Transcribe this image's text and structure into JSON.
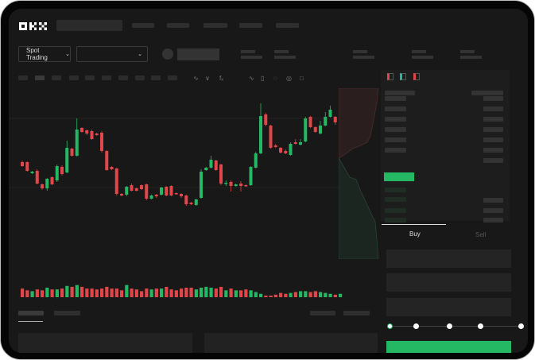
{
  "header": {
    "logo": "OKX"
  },
  "market_bar": {
    "mode_label": "Spot Trading"
  },
  "trade_panel": {
    "tabs": [
      "Buy",
      "Sell"
    ],
    "active_tab": "Buy",
    "slider_percent": 0,
    "slider_stops": [
      0,
      25,
      50,
      75,
      100
    ]
  },
  "colors": {
    "up": "#25b864",
    "down": "#e0464a",
    "background": "#181818"
  },
  "toolbar_icons": [
    "line-chart-icon",
    "chart-type-icon",
    "indicator-icon",
    "trend-line-icon",
    "ruler-icon",
    "camera-icon",
    "settings-icon",
    "fullscreen-icon"
  ],
  "orderbook_view_icons": [
    "both-sides-icon",
    "bids-only-icon",
    "asks-only-icon"
  ],
  "chart_data": {
    "type": "candlestick",
    "candles": [
      [
        67,
        62,
        69,
        61
      ],
      [
        67,
        56,
        68,
        55
      ],
      [
        53,
        55,
        56,
        52
      ],
      [
        56,
        40,
        58,
        39
      ],
      [
        39,
        34,
        40,
        32
      ],
      [
        34,
        46,
        47,
        31
      ],
      [
        48,
        39,
        49,
        38
      ],
      [
        44,
        62,
        64,
        42
      ],
      [
        61,
        52,
        63,
        50
      ],
      [
        54,
        85,
        94,
        53
      ],
      [
        84,
        75,
        85,
        74
      ],
      [
        75,
        108,
        122,
        74
      ],
      [
        110,
        105,
        111,
        104
      ],
      [
        107,
        103,
        108,
        101
      ],
      [
        106,
        96,
        108,
        95
      ],
      [
        103,
        101,
        104,
        100
      ],
      [
        104,
        81,
        106,
        79
      ],
      [
        81,
        57,
        82,
        56
      ],
      [
        61,
        58,
        62,
        57
      ],
      [
        59,
        27,
        60,
        25
      ],
      [
        27,
        25,
        28,
        24
      ],
      [
        26,
        36,
        37,
        24
      ],
      [
        38,
        31,
        40,
        30
      ],
      [
        34,
        31,
        35,
        30
      ],
      [
        38,
        33,
        39,
        32
      ],
      [
        39,
        21,
        40,
        19
      ],
      [
        21,
        25,
        26,
        20
      ],
      [
        26,
        24,
        27,
        22
      ],
      [
        26,
        35,
        36,
        25
      ],
      [
        36,
        25,
        37,
        24
      ],
      [
        37,
        25,
        38,
        24
      ],
      [
        28,
        27,
        29,
        26
      ],
      [
        27,
        24,
        28,
        22
      ],
      [
        25,
        14,
        26,
        12
      ],
      [
        16,
        14,
        17,
        13
      ],
      [
        13,
        20,
        21,
        12
      ],
      [
        22,
        55,
        58,
        21
      ],
      [
        57,
        60,
        61,
        56
      ],
      [
        60,
        70,
        75,
        59
      ],
      [
        69,
        57,
        70,
        56
      ],
      [
        64,
        40,
        65,
        38
      ],
      [
        40,
        41,
        44,
        37
      ],
      [
        42,
        37,
        44,
        30
      ],
      [
        37,
        39,
        40,
        36
      ],
      [
        40,
        37,
        43,
        30
      ],
      [
        38,
        37,
        39,
        36
      ],
      [
        38,
        61,
        62,
        37
      ],
      [
        60,
        78,
        80,
        59
      ],
      [
        78,
        125,
        141,
        77
      ],
      [
        127,
        114,
        129,
        112
      ],
      [
        113,
        85,
        114,
        84
      ],
      [
        88,
        86,
        90,
        85
      ],
      [
        85,
        79,
        86,
        78
      ],
      [
        81,
        78,
        83,
        77
      ],
      [
        76,
        90,
        92,
        75
      ],
      [
        92,
        90,
        96,
        89
      ],
      [
        89,
        92,
        96,
        88
      ],
      [
        93,
        122,
        124,
        92
      ],
      [
        124,
        111,
        125,
        110
      ],
      [
        111,
        105,
        112,
        104
      ],
      [
        103,
        113,
        119,
        102
      ],
      [
        113,
        124,
        130,
        112
      ],
      [
        124,
        133,
        138,
        123
      ],
      [
        124,
        117,
        125,
        114
      ],
      [
        114,
        121,
        127,
        113
      ]
    ],
    "volume": [
      9,
      7,
      6,
      8,
      7,
      10,
      8,
      8,
      9,
      12,
      11,
      13,
      11,
      9,
      9,
      8,
      9,
      11,
      9,
      9,
      7,
      13,
      9,
      8,
      6,
      9,
      8,
      9,
      9,
      11,
      8,
      7,
      9,
      10,
      10,
      8,
      10,
      11,
      10,
      9,
      11,
      7,
      9,
      7,
      7,
      8,
      7,
      5,
      3,
      1,
      1,
      2,
      4,
      3,
      4,
      5,
      6,
      6,
      5,
      6,
      5,
      4,
      3,
      2,
      3
    ]
  }
}
